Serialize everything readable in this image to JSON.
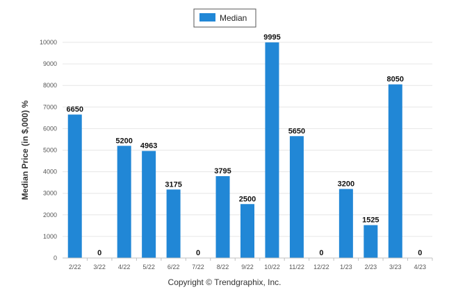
{
  "chart_data": {
    "type": "bar",
    "title": "",
    "xlabel": "",
    "ylabel": "Median Price (in $,000) %",
    "categories": [
      "2/22",
      "3/22",
      "4/22",
      "5/22",
      "6/22",
      "7/22",
      "8/22",
      "9/22",
      "10/22",
      "11/22",
      "12/22",
      "1/23",
      "2/23",
      "3/23",
      "4/23"
    ],
    "series": [
      {
        "name": "Median",
        "values": [
          6650,
          0,
          5200,
          4963,
          3175,
          0,
          3795,
          2500,
          9995,
          5650,
          0,
          3200,
          1525,
          8050,
          0
        ]
      }
    ],
    "data_labels": [
      "6650",
      "0",
      "5200",
      "4963",
      "3175",
      "0",
      "3795",
      "2500",
      "9995",
      "5650",
      "0",
      "3200",
      "1525",
      "8050",
      "0"
    ],
    "ylim": [
      0,
      10000
    ],
    "yticks": [
      "0",
      "1000",
      "2000",
      "3000",
      "4000",
      "5000",
      "6000",
      "7000",
      "8000",
      "9000",
      "10000"
    ],
    "grid": true,
    "legend_position": "top-center",
    "colors": {
      "bar": "#2187d6",
      "grid": "#e6e6e6",
      "axis": "#c0c0c0"
    }
  },
  "footer": {
    "copyright": "Copyright © Trendgraphix, Inc."
  }
}
